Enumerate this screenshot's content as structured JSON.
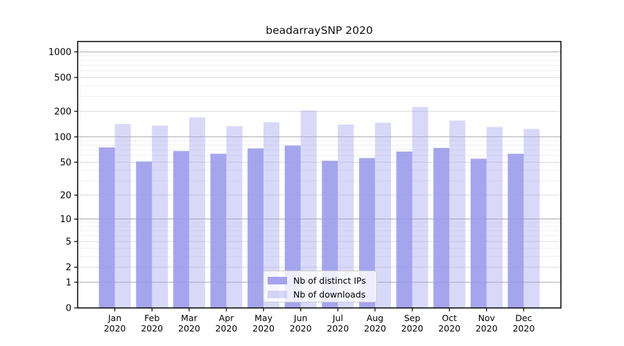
{
  "chart_data": {
    "type": "bar",
    "title": "beadarraySNP 2020",
    "categories": [
      "Jan 2020",
      "Feb 2020",
      "Mar 2020",
      "Apr 2020",
      "May 2020",
      "Jun 2020",
      "Jul 2020",
      "Aug 2020",
      "Sep 2020",
      "Oct 2020",
      "Nov 2020",
      "Dec 2020"
    ],
    "series": [
      {
        "name": "Nb of distinct IPs",
        "color": "#9898ec",
        "opacity": 0.88,
        "values": [
          75,
          51,
          68,
          63,
          73,
          79,
          52,
          56,
          67,
          74,
          55,
          63
        ]
      },
      {
        "name": "Nb of downloads",
        "color": "#a3a3ee",
        "opacity": 0.42,
        "values": [
          142,
          136,
          169,
          134,
          149,
          205,
          140,
          147,
          225,
          156,
          131,
          124
        ]
      }
    ],
    "xlabel": "",
    "ylabel": "",
    "y_scale": "log10(value+1)",
    "y_ticks": [
      0,
      1,
      2,
      5,
      10,
      20,
      50,
      100,
      200,
      500,
      1000
    ],
    "ylim": [
      0,
      1320
    ],
    "grid": true,
    "legend_position": "inside-bottom-center",
    "colors": {
      "grid_decade": "#a6a6a6",
      "grid_major": "#d9d9d9",
      "grid_minor": "#efefef",
      "frame": "#000000",
      "text": "#000000",
      "legend_bg": "#ffffff",
      "legend_border": "#cccccc"
    }
  }
}
